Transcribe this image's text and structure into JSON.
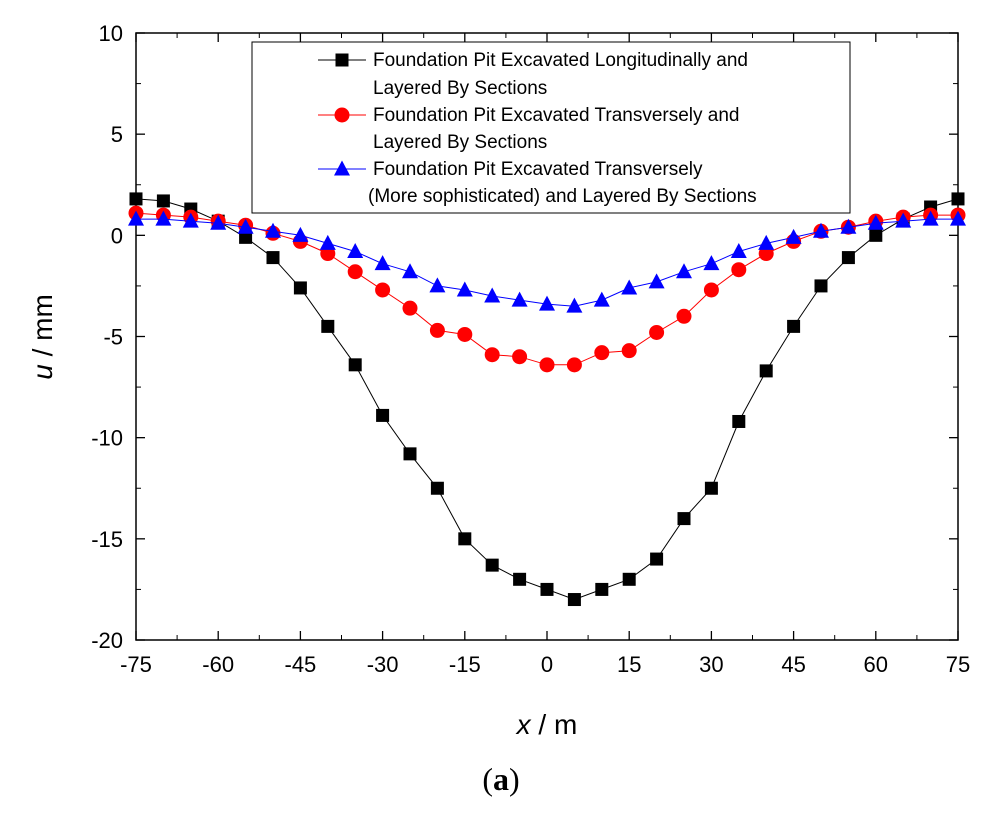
{
  "chart_data": {
    "type": "line",
    "xlabel": {
      "var": "x",
      "unit": " / m"
    },
    "ylabel": {
      "var": "u",
      "unit": " / mm"
    },
    "xlim": [
      -75,
      75
    ],
    "ylim": [
      -20,
      10
    ],
    "xticks": [
      -75,
      -60,
      -45,
      -30,
      -15,
      0,
      15,
      30,
      45,
      60,
      75
    ],
    "yticks": [
      10,
      5,
      0,
      -5,
      -10,
      -15,
      -20
    ],
    "legend_position": "top-center",
    "x": [
      -75,
      -70,
      -65,
      -60,
      -55,
      -50,
      -45,
      -40,
      -35,
      -30,
      -25,
      -20,
      -15,
      -10,
      -5,
      0,
      5,
      10,
      15,
      20,
      25,
      30,
      35,
      40,
      45,
      50,
      55,
      60,
      65,
      70,
      75
    ],
    "series": [
      {
        "name": "Foundation Pit Excavated Longitudinally and Layered By Sections",
        "legend_lines": [
          "Foundation Pit Excavated Longitudinally and",
          "Layered By Sections"
        ],
        "color": "#000000",
        "marker": "square",
        "values": [
          1.8,
          1.7,
          1.3,
          0.7,
          -0.1,
          -1.1,
          -2.6,
          -4.5,
          -6.4,
          -8.9,
          -10.8,
          -12.5,
          -15.0,
          -16.3,
          -17.0,
          -17.5,
          -18.0,
          -17.5,
          -17.0,
          -16.0,
          -14.0,
          -12.5,
          -9.2,
          -6.7,
          -4.5,
          -2.5,
          -1.1,
          0.0,
          0.8,
          1.4,
          1.8
        ]
      },
      {
        "name": "Foundation Pit Excavated Transversely and Layered By Sections",
        "legend_lines": [
          "Foundation Pit Excavated Transversely and",
          "Layered By Sections"
        ],
        "color": "#ff0000",
        "marker": "circle",
        "values": [
          1.1,
          1.0,
          0.9,
          0.7,
          0.5,
          0.1,
          -0.3,
          -0.9,
          -1.8,
          -2.7,
          -3.6,
          -4.7,
          -4.9,
          -5.9,
          -6.0,
          -6.4,
          -6.4,
          -5.8,
          -5.7,
          -4.8,
          -4.0,
          -2.7,
          -1.7,
          -0.9,
          -0.3,
          0.2,
          0.4,
          0.7,
          0.9,
          1.0,
          1.0
        ]
      },
      {
        "name": "Foundation Pit Excavated Transversely (More sophisticated) and Layered By Sections",
        "legend_lines": [
          "Foundation Pit Excavated Transversely",
          "(More sophisticated) and Layered By Sections"
        ],
        "color": "#0000ff",
        "marker": "triangle",
        "values": [
          0.8,
          0.8,
          0.7,
          0.6,
          0.4,
          0.2,
          0.0,
          -0.4,
          -0.8,
          -1.4,
          -1.8,
          -2.5,
          -2.7,
          -3.0,
          -3.2,
          -3.4,
          -3.5,
          -3.2,
          -2.6,
          -2.3,
          -1.8,
          -1.4,
          -0.8,
          -0.4,
          -0.1,
          0.2,
          0.4,
          0.6,
          0.7,
          0.8,
          0.8
        ]
      }
    ],
    "caption_letter": "a"
  }
}
